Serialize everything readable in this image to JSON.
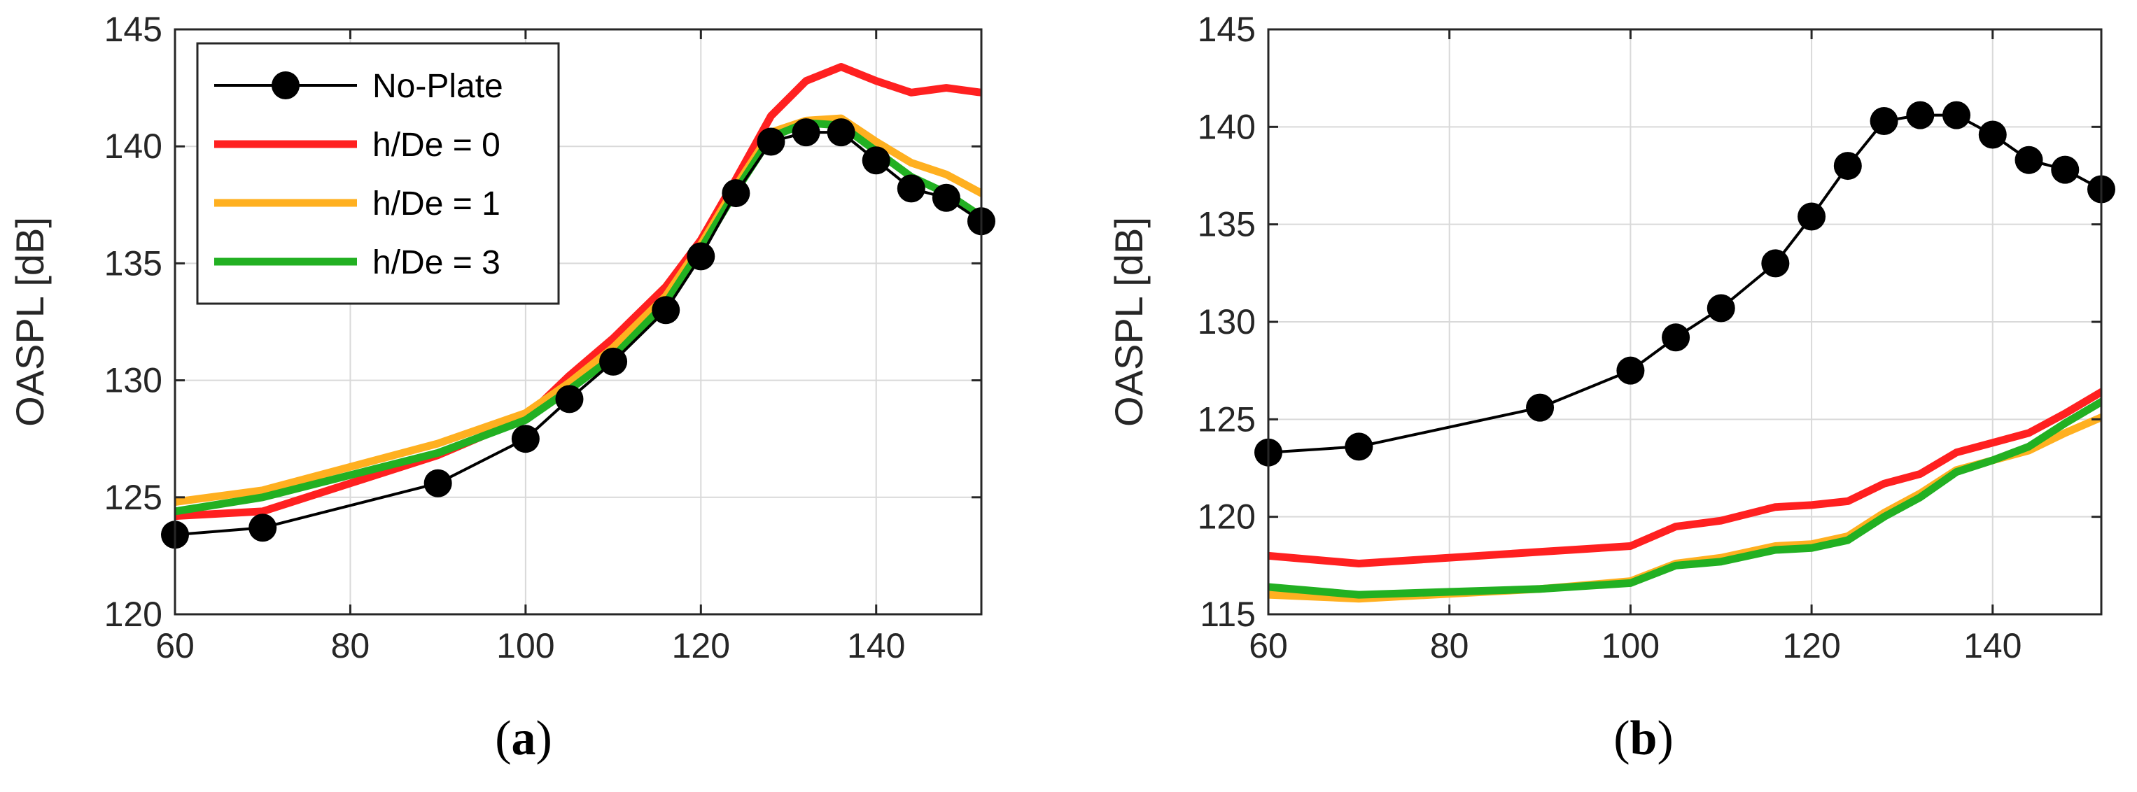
{
  "colors": {
    "no_plate": "#000000",
    "h0": "#ff2020",
    "h1": "#ffb020",
    "h3": "#22b022",
    "grid": "#d9d9d9",
    "axis": "#262626"
  },
  "chart_data": [
    {
      "type": "line",
      "caption": {
        "open": "(",
        "letter": "a",
        "close": ")"
      },
      "title": "",
      "xlabel": "",
      "ylabel": "OASPL [dB]",
      "xlim": [
        60,
        152
      ],
      "ylim": [
        120,
        145
      ],
      "xticks": [
        60,
        80,
        100,
        120,
        140
      ],
      "yticks": [
        120,
        125,
        130,
        135,
        140,
        145
      ],
      "xtick_labels": [
        "60",
        "80",
        "100",
        "120",
        "140"
      ],
      "ytick_labels": [
        "120",
        "125",
        "130",
        "135",
        "140",
        "145"
      ],
      "grid": true,
      "legend": {
        "position": "top-left",
        "entries": [
          "No-Plate",
          "h/De = 0",
          "h/De = 1",
          "h/De = 3"
        ]
      },
      "series": [
        {
          "name": "No-Plate",
          "color_key": "no_plate",
          "markers": true,
          "x": [
            60,
            70,
            90,
            100,
            105,
            110,
            116,
            120,
            124,
            128,
            132,
            136,
            140,
            144,
            148,
            152
          ],
          "y": [
            123.4,
            123.7,
            125.6,
            127.5,
            129.2,
            130.8,
            133.0,
            135.3,
            138.0,
            140.2,
            140.6,
            140.6,
            139.4,
            138.2,
            137.8,
            136.8
          ]
        },
        {
          "name": "h/De = 0",
          "color_key": "h0",
          "markers": false,
          "x": [
            60,
            70,
            90,
            100,
            105,
            110,
            116,
            120,
            124,
            128,
            132,
            136,
            140,
            144,
            148,
            152
          ],
          "y": [
            124.2,
            124.4,
            126.8,
            128.4,
            130.2,
            131.8,
            134.0,
            136.0,
            138.6,
            141.3,
            142.8,
            143.4,
            142.8,
            142.3,
            142.5,
            142.3
          ]
        },
        {
          "name": "h/De = 1",
          "color_key": "h1",
          "markers": false,
          "x": [
            60,
            70,
            90,
            100,
            105,
            110,
            116,
            120,
            124,
            128,
            132,
            136,
            140,
            144,
            148,
            152
          ],
          "y": [
            124.8,
            125.3,
            127.3,
            128.6,
            129.9,
            131.4,
            133.6,
            135.8,
            138.3,
            140.6,
            141.1,
            141.2,
            140.2,
            139.3,
            138.8,
            138.0
          ]
        },
        {
          "name": "h/De = 3",
          "color_key": "h3",
          "markers": false,
          "x": [
            60,
            70,
            90,
            100,
            105,
            110,
            116,
            120,
            124,
            128,
            132,
            136,
            140,
            144,
            148,
            152
          ],
          "y": [
            124.4,
            125.0,
            126.9,
            128.3,
            129.6,
            131.0,
            133.3,
            135.6,
            138.1,
            140.4,
            141.0,
            140.9,
            139.8,
            138.7,
            138.0,
            137.0
          ]
        }
      ]
    },
    {
      "type": "line",
      "caption": {
        "open": "(",
        "letter": "b",
        "close": ")"
      },
      "title": "",
      "xlabel": "",
      "ylabel": "OASPL [dB]",
      "xlim": [
        60,
        152
      ],
      "ylim": [
        115,
        145
      ],
      "xticks": [
        60,
        80,
        100,
        120,
        140
      ],
      "yticks": [
        115,
        120,
        125,
        130,
        135,
        140,
        145
      ],
      "xtick_labels": [
        "60",
        "80",
        "100",
        "120",
        "140"
      ],
      "ytick_labels": [
        "115",
        "120",
        "125",
        "130",
        "135",
        "140",
        "145"
      ],
      "grid": true,
      "legend": null,
      "series": [
        {
          "name": "No-Plate",
          "color_key": "no_plate",
          "markers": true,
          "x": [
            60,
            70,
            90,
            100,
            105,
            110,
            116,
            120,
            124,
            128,
            132,
            136,
            140,
            144,
            148,
            152
          ],
          "y": [
            123.3,
            123.6,
            125.6,
            127.5,
            129.2,
            130.7,
            133.0,
            135.4,
            138.0,
            140.3,
            140.6,
            140.6,
            139.6,
            138.3,
            137.8,
            136.8
          ]
        },
        {
          "name": "h/De = 0",
          "color_key": "h0",
          "markers": false,
          "x": [
            60,
            70,
            90,
            100,
            105,
            110,
            116,
            120,
            124,
            128,
            132,
            136,
            140,
            144,
            148,
            152
          ],
          "y": [
            118.0,
            117.6,
            118.2,
            118.5,
            119.5,
            119.8,
            120.5,
            120.6,
            120.8,
            121.7,
            122.2,
            123.3,
            123.8,
            124.3,
            125.3,
            126.4
          ]
        },
        {
          "name": "h/De = 1",
          "color_key": "h1",
          "markers": false,
          "x": [
            60,
            70,
            90,
            100,
            105,
            110,
            116,
            120,
            124,
            128,
            132,
            136,
            140,
            144,
            148,
            152
          ],
          "y": [
            116.0,
            115.8,
            116.3,
            116.7,
            117.6,
            117.9,
            118.5,
            118.6,
            119.0,
            120.2,
            121.2,
            122.4,
            122.9,
            123.4,
            124.3,
            125.1
          ]
        },
        {
          "name": "h/De = 3",
          "color_key": "h3",
          "markers": false,
          "x": [
            60,
            70,
            90,
            100,
            105,
            110,
            116,
            120,
            124,
            128,
            132,
            136,
            140,
            144,
            148,
            152
          ],
          "y": [
            116.4,
            116.0,
            116.3,
            116.6,
            117.5,
            117.7,
            118.3,
            118.4,
            118.8,
            120.0,
            121.0,
            122.3,
            122.9,
            123.6,
            124.8,
            125.9
          ]
        }
      ]
    }
  ]
}
